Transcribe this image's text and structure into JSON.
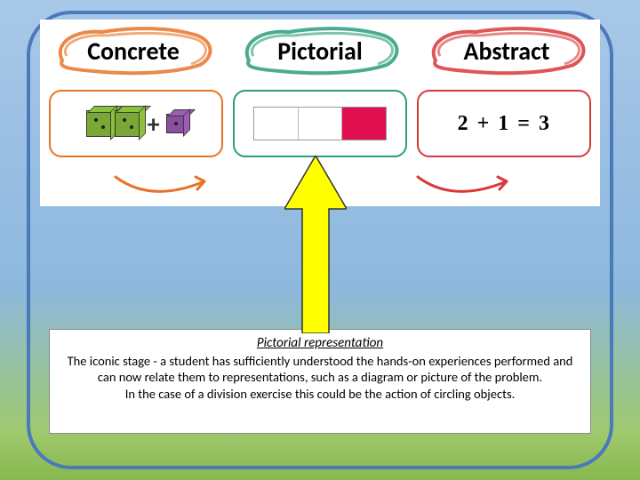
{
  "labels": {
    "concrete": {
      "text": "Concrete",
      "color": "#e67428",
      "text_color": "#1a1a1a"
    },
    "pictorial": {
      "text": "Pictorial",
      "color": "#2a9d7a",
      "text_color": "#1a1a1a"
    },
    "abstract": {
      "text": "Abstract",
      "color": "#d93838",
      "text_color": "#1a1a1a"
    }
  },
  "concrete_box": {
    "border_color": "#e67428",
    "cube_color_big": "#7aa834",
    "cube_color_small": "#8a4f9e",
    "plus": "+"
  },
  "pictorial_box": {
    "border_color": "#2a9d7a",
    "segments": [
      "#ffffff",
      "#ffffff",
      "#e01050"
    ]
  },
  "abstract_box": {
    "border_color": "#d93838",
    "equation": "2 + 1 = 3"
  },
  "swoosh_arrows": {
    "left_color": "#e67428",
    "right_color": "#d93838"
  },
  "pointer_arrow": {
    "fill": "#ffff00",
    "stroke": "#333333"
  },
  "textbox": {
    "title": "Pictorial representation",
    "line1": "The iconic stage - a student has sufficiently understood the hands-on experiences performed and can now relate them to representations, such as a diagram or picture of the problem.",
    "line2": "In the case of a division exercise this could be the action of circling objects."
  },
  "frame": {
    "border_color": "#4a7ab8",
    "radius": 50
  },
  "background": {
    "gradient_top": "#a8c8e8",
    "gradient_mid": "#8db8de",
    "gradient_low": "#9ec96e",
    "gradient_bottom": "#88b850"
  }
}
